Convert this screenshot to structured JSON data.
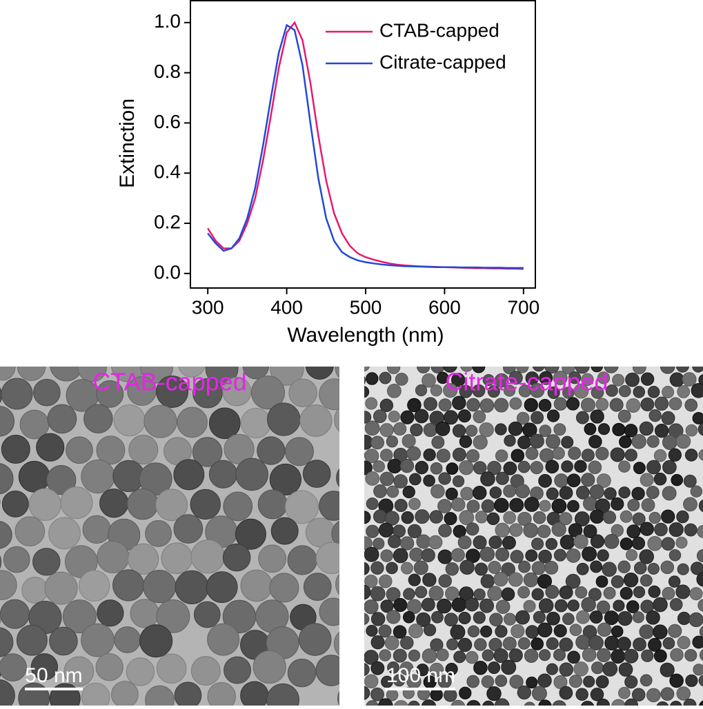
{
  "chart_data": {
    "type": "line",
    "x_label": "Wavelength (nm)",
    "y_label": "Extinction",
    "x": [
      300,
      310,
      320,
      330,
      340,
      350,
      360,
      370,
      380,
      390,
      400,
      410,
      420,
      430,
      440,
      450,
      460,
      470,
      480,
      490,
      500,
      510,
      520,
      530,
      540,
      550,
      560,
      570,
      580,
      590,
      600,
      610,
      620,
      630,
      640,
      650,
      660,
      670,
      680,
      690,
      700
    ],
    "series": [
      {
        "name": "CTAB-capped",
        "color": "#e8186e",
        "values": [
          0.18,
          0.13,
          0.1,
          0.1,
          0.13,
          0.2,
          0.3,
          0.45,
          0.63,
          0.82,
          0.96,
          1.0,
          0.93,
          0.76,
          0.55,
          0.37,
          0.24,
          0.16,
          0.11,
          0.08,
          0.065,
          0.055,
          0.047,
          0.04,
          0.035,
          0.032,
          0.03,
          0.028,
          0.027,
          0.026,
          0.025,
          0.024,
          0.023,
          0.022,
          0.021,
          0.021,
          0.02,
          0.02,
          0.019,
          0.019,
          0.018
        ]
      },
      {
        "name": "Citrate-capped",
        "color": "#2148d8",
        "values": [
          0.16,
          0.12,
          0.09,
          0.1,
          0.14,
          0.22,
          0.34,
          0.51,
          0.7,
          0.88,
          0.99,
          0.97,
          0.83,
          0.6,
          0.38,
          0.22,
          0.13,
          0.085,
          0.065,
          0.052,
          0.045,
          0.04,
          0.036,
          0.033,
          0.031,
          0.029,
          0.028,
          0.027,
          0.026,
          0.025,
          0.025,
          0.025,
          0.024,
          0.024,
          0.024,
          0.023,
          0.023,
          0.023,
          0.022,
          0.022,
          0.022
        ]
      }
    ],
    "xlim": [
      278,
      715
    ],
    "ylim": [
      -0.058,
      1.09
    ],
    "xticks": [
      300,
      400,
      500,
      600,
      700
    ],
    "yticks": [
      {
        "value": 0,
        "label": "0.0"
      },
      0.2,
      0.4,
      0.6,
      0.8,
      {
        "value": 1,
        "label": "1.0"
      }
    ],
    "legend": "upper-right"
  },
  "panels": [
    {
      "label": "CTAB-capped",
      "scale_bar": "50 nm"
    },
    {
      "label": "Citrate-capped",
      "scale_bar": "100 nm"
    }
  ]
}
